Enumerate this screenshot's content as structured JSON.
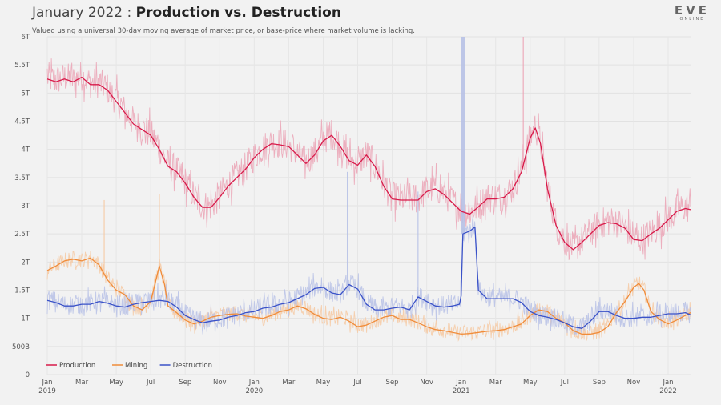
{
  "header": {
    "title_prefix": "January 2022 : ",
    "title_main": "Production vs. Destruction",
    "subtitle": "Valued using a universal 30-day moving average of market price, or base-price where market volume is lacking."
  },
  "logo": {
    "top": "EVE",
    "bottom": "ONLINE"
  },
  "chart_data": {
    "type": "line",
    "title": "January 2022 : Production vs. Destruction",
    "xlabel": "",
    "ylabel": "",
    "ylim": [
      0,
      6
    ],
    "y_unit": "T (trillion ISK)",
    "grid": true,
    "legend_position": "bottom-left",
    "y_ticks": [
      {
        "value": 0,
        "label": "0"
      },
      {
        "value": 0.5,
        "label": "500B"
      },
      {
        "value": 1,
        "label": "1T"
      },
      {
        "value": 1.5,
        "label": "1.5T"
      },
      {
        "value": 2,
        "label": "2T"
      },
      {
        "value": 2.5,
        "label": "2.5T"
      },
      {
        "value": 3,
        "label": "3T"
      },
      {
        "value": 3.5,
        "label": "3.5T"
      },
      {
        "value": 4,
        "label": "4T"
      },
      {
        "value": 4.5,
        "label": "4.5T"
      },
      {
        "value": 5,
        "label": "5T"
      },
      {
        "value": 5.5,
        "label": "5.5T"
      },
      {
        "value": 6,
        "label": "6T"
      }
    ],
    "x_ticks": [
      {
        "month": 0,
        "label": "Jan",
        "year": "2019"
      },
      {
        "month": 2,
        "label": "Mar"
      },
      {
        "month": 4,
        "label": "May"
      },
      {
        "month": 6,
        "label": "Jul"
      },
      {
        "month": 8,
        "label": "Sep"
      },
      {
        "month": 10,
        "label": "Nov"
      },
      {
        "month": 12,
        "label": "Jan",
        "year": "2020"
      },
      {
        "month": 14,
        "label": "Mar"
      },
      {
        "month": 16,
        "label": "May"
      },
      {
        "month": 18,
        "label": "Jul"
      },
      {
        "month": 20,
        "label": "Sep"
      },
      {
        "month": 22,
        "label": "Nov"
      },
      {
        "month": 24,
        "label": "Jan",
        "year": "2021"
      },
      {
        "month": 26,
        "label": "Mar"
      },
      {
        "month": 28,
        "label": "May"
      },
      {
        "month": 30,
        "label": "Jul"
      },
      {
        "month": 32,
        "label": "Sep"
      },
      {
        "month": 34,
        "label": "Nov"
      },
      {
        "month": 36,
        "label": "Jan",
        "year": "2022"
      }
    ],
    "x_range_months": [
      0,
      37.3
    ],
    "series": [
      {
        "name": "Production",
        "color": "#d81b4a",
        "raw_color": "#eba3b5",
        "noise": 0.28,
        "points": [
          [
            0,
            5.25
          ],
          [
            0.5,
            5.2
          ],
          [
            1,
            5.25
          ],
          [
            1.5,
            5.2
          ],
          [
            2,
            5.28
          ],
          [
            2.5,
            5.15
          ],
          [
            3,
            5.15
          ],
          [
            3.5,
            5.05
          ],
          [
            4,
            4.85
          ],
          [
            4.5,
            4.65
          ],
          [
            5,
            4.45
          ],
          [
            5.5,
            4.35
          ],
          [
            6,
            4.25
          ],
          [
            6.5,
            4.0
          ],
          [
            7,
            3.7
          ],
          [
            7.5,
            3.6
          ],
          [
            8,
            3.4
          ],
          [
            8.5,
            3.15
          ],
          [
            9,
            2.97
          ],
          [
            9.5,
            2.97
          ],
          [
            10,
            3.15
          ],
          [
            10.5,
            3.35
          ],
          [
            11,
            3.5
          ],
          [
            11.5,
            3.65
          ],
          [
            12,
            3.85
          ],
          [
            12.5,
            4.0
          ],
          [
            13,
            4.1
          ],
          [
            13.5,
            4.08
          ],
          [
            14,
            4.05
          ],
          [
            14.5,
            3.9
          ],
          [
            15,
            3.75
          ],
          [
            15.5,
            3.9
          ],
          [
            16,
            4.15
          ],
          [
            16.5,
            4.25
          ],
          [
            17,
            4.05
          ],
          [
            17.5,
            3.8
          ],
          [
            18,
            3.72
          ],
          [
            18.5,
            3.9
          ],
          [
            19,
            3.7
          ],
          [
            19.5,
            3.35
          ],
          [
            20,
            3.12
          ],
          [
            20.5,
            3.1
          ],
          [
            21,
            3.1
          ],
          [
            21.5,
            3.1
          ],
          [
            22,
            3.25
          ],
          [
            22.5,
            3.3
          ],
          [
            23,
            3.2
          ],
          [
            23.5,
            3.05
          ],
          [
            24,
            2.9
          ],
          [
            24.5,
            2.85
          ],
          [
            25,
            2.98
          ],
          [
            25.5,
            3.12
          ],
          [
            26,
            3.12
          ],
          [
            26.5,
            3.15
          ],
          [
            27,
            3.3
          ],
          [
            27.5,
            3.6
          ],
          [
            28,
            4.2
          ],
          [
            28.3,
            4.38
          ],
          [
            28.6,
            4.1
          ],
          [
            29,
            3.3
          ],
          [
            29.5,
            2.65
          ],
          [
            30,
            2.35
          ],
          [
            30.5,
            2.22
          ],
          [
            31,
            2.35
          ],
          [
            31.5,
            2.5
          ],
          [
            32,
            2.65
          ],
          [
            32.5,
            2.7
          ],
          [
            33,
            2.68
          ],
          [
            33.5,
            2.6
          ],
          [
            34,
            2.4
          ],
          [
            34.5,
            2.38
          ],
          [
            35,
            2.5
          ],
          [
            35.5,
            2.6
          ],
          [
            36,
            2.75
          ],
          [
            36.5,
            2.9
          ],
          [
            37,
            2.95
          ],
          [
            37.3,
            2.93
          ]
        ]
      },
      {
        "name": "Mining",
        "color": "#f08c3a",
        "raw_color": "#f6c9a2",
        "noise": 0.14,
        "points": [
          [
            0,
            1.85
          ],
          [
            0.5,
            1.93
          ],
          [
            1,
            2.02
          ],
          [
            1.5,
            2.05
          ],
          [
            2,
            2.02
          ],
          [
            2.5,
            2.07
          ],
          [
            3,
            1.95
          ],
          [
            3.5,
            1.68
          ],
          [
            4,
            1.5
          ],
          [
            4.5,
            1.42
          ],
          [
            5,
            1.22
          ],
          [
            5.5,
            1.15
          ],
          [
            6,
            1.3
          ],
          [
            6.2,
            1.55
          ],
          [
            6.5,
            1.93
          ],
          [
            6.8,
            1.6
          ],
          [
            7,
            1.22
          ],
          [
            7.5,
            1.1
          ],
          [
            8,
            0.97
          ],
          [
            8.5,
            0.9
          ],
          [
            9,
            0.95
          ],
          [
            9.5,
            1.02
          ],
          [
            10,
            1.05
          ],
          [
            10.5,
            1.07
          ],
          [
            11,
            1.08
          ],
          [
            11.5,
            1.04
          ],
          [
            12,
            1.02
          ],
          [
            12.5,
            1.0
          ],
          [
            13,
            1.05
          ],
          [
            13.5,
            1.12
          ],
          [
            14,
            1.15
          ],
          [
            14.5,
            1.22
          ],
          [
            15,
            1.17
          ],
          [
            15.5,
            1.07
          ],
          [
            16,
            1.0
          ],
          [
            16.5,
            0.98
          ],
          [
            17,
            1.02
          ],
          [
            17.5,
            0.95
          ],
          [
            18,
            0.85
          ],
          [
            18.5,
            0.88
          ],
          [
            19,
            0.95
          ],
          [
            19.5,
            1.02
          ],
          [
            20,
            1.05
          ],
          [
            20.5,
            0.98
          ],
          [
            21,
            0.98
          ],
          [
            21.5,
            0.92
          ],
          [
            22,
            0.85
          ],
          [
            22.5,
            0.8
          ],
          [
            23,
            0.78
          ],
          [
            23.5,
            0.75
          ],
          [
            24,
            0.72
          ],
          [
            24.5,
            0.73
          ],
          [
            25,
            0.75
          ],
          [
            25.5,
            0.77
          ],
          [
            26,
            0.78
          ],
          [
            26.5,
            0.8
          ],
          [
            27,
            0.85
          ],
          [
            27.5,
            0.9
          ],
          [
            28,
            1.05
          ],
          [
            28.5,
            1.15
          ],
          [
            29,
            1.12
          ],
          [
            29.5,
            1.0
          ],
          [
            30,
            0.92
          ],
          [
            30.5,
            0.78
          ],
          [
            31,
            0.72
          ],
          [
            31.5,
            0.72
          ],
          [
            32,
            0.75
          ],
          [
            32.5,
            0.85
          ],
          [
            33,
            1.1
          ],
          [
            33.5,
            1.3
          ],
          [
            34,
            1.55
          ],
          [
            34.3,
            1.62
          ],
          [
            34.6,
            1.5
          ],
          [
            35,
            1.12
          ],
          [
            35.5,
            0.98
          ],
          [
            36,
            0.9
          ],
          [
            36.5,
            0.97
          ],
          [
            37,
            1.05
          ],
          [
            37.3,
            1.1
          ]
        ]
      },
      {
        "name": "Destruction",
        "color": "#3a52c8",
        "raw_color": "#b7c1e6",
        "noise": 0.18,
        "points": [
          [
            0,
            1.32
          ],
          [
            0.5,
            1.28
          ],
          [
            1,
            1.22
          ],
          [
            1.5,
            1.22
          ],
          [
            2,
            1.25
          ],
          [
            2.5,
            1.25
          ],
          [
            3,
            1.3
          ],
          [
            3.5,
            1.27
          ],
          [
            4,
            1.22
          ],
          [
            4.5,
            1.2
          ],
          [
            5,
            1.25
          ],
          [
            5.5,
            1.28
          ],
          [
            6,
            1.3
          ],
          [
            6.5,
            1.32
          ],
          [
            7,
            1.3
          ],
          [
            7.5,
            1.2
          ],
          [
            8,
            1.05
          ],
          [
            8.5,
            0.98
          ],
          [
            9,
            0.92
          ],
          [
            9.5,
            0.95
          ],
          [
            10,
            0.97
          ],
          [
            10.5,
            1.02
          ],
          [
            11,
            1.05
          ],
          [
            11.5,
            1.1
          ],
          [
            12,
            1.12
          ],
          [
            12.5,
            1.18
          ],
          [
            13,
            1.2
          ],
          [
            13.5,
            1.25
          ],
          [
            14,
            1.28
          ],
          [
            14.5,
            1.35
          ],
          [
            15,
            1.42
          ],
          [
            15.5,
            1.53
          ],
          [
            16,
            1.55
          ],
          [
            16.5,
            1.45
          ],
          [
            17,
            1.42
          ],
          [
            17.5,
            1.6
          ],
          [
            18,
            1.52
          ],
          [
            18.5,
            1.25
          ],
          [
            19,
            1.15
          ],
          [
            19.5,
            1.15
          ],
          [
            20,
            1.18
          ],
          [
            20.5,
            1.2
          ],
          [
            21,
            1.15
          ],
          [
            21.5,
            1.38
          ],
          [
            22,
            1.3
          ],
          [
            22.5,
            1.22
          ],
          [
            23,
            1.2
          ],
          [
            23.5,
            1.22
          ],
          [
            23.9,
            1.25
          ],
          [
            24,
            1.4
          ],
          [
            24.1,
            2.5
          ],
          [
            24.5,
            2.55
          ],
          [
            24.8,
            2.62
          ],
          [
            25,
            1.5
          ],
          [
            25.5,
            1.35
          ],
          [
            26,
            1.35
          ],
          [
            26.5,
            1.35
          ],
          [
            27,
            1.35
          ],
          [
            27.5,
            1.28
          ],
          [
            28,
            1.12
          ],
          [
            28.5,
            1.05
          ],
          [
            29,
            1.02
          ],
          [
            29.5,
            0.98
          ],
          [
            30,
            0.92
          ],
          [
            30.5,
            0.85
          ],
          [
            31,
            0.82
          ],
          [
            31.5,
            0.95
          ],
          [
            32,
            1.12
          ],
          [
            32.5,
            1.12
          ],
          [
            33,
            1.05
          ],
          [
            33.5,
            1.0
          ],
          [
            34,
            1.0
          ],
          [
            34.5,
            1.02
          ],
          [
            35,
            1.02
          ],
          [
            35.5,
            1.05
          ],
          [
            36,
            1.08
          ],
          [
            36.5,
            1.08
          ],
          [
            37,
            1.1
          ],
          [
            37.3,
            1.06
          ]
        ]
      }
    ],
    "spikes": [
      {
        "series": "Destruction",
        "month": 24.1,
        "value": 6.0,
        "width_months": 0.25
      },
      {
        "series": "Destruction",
        "month": 17.4,
        "value": 3.6,
        "width_months": 0.05
      },
      {
        "series": "Destruction",
        "month": 21.5,
        "value": 3.25,
        "width_months": 0.05
      },
      {
        "series": "Mining",
        "month": 3.3,
        "value": 3.1,
        "width_months": 0.05
      },
      {
        "series": "Mining",
        "month": 6.5,
        "value": 3.2,
        "width_months": 0.05
      },
      {
        "series": "Production",
        "month": 27.6,
        "value": 6.0,
        "width_months": 0.05
      }
    ]
  }
}
